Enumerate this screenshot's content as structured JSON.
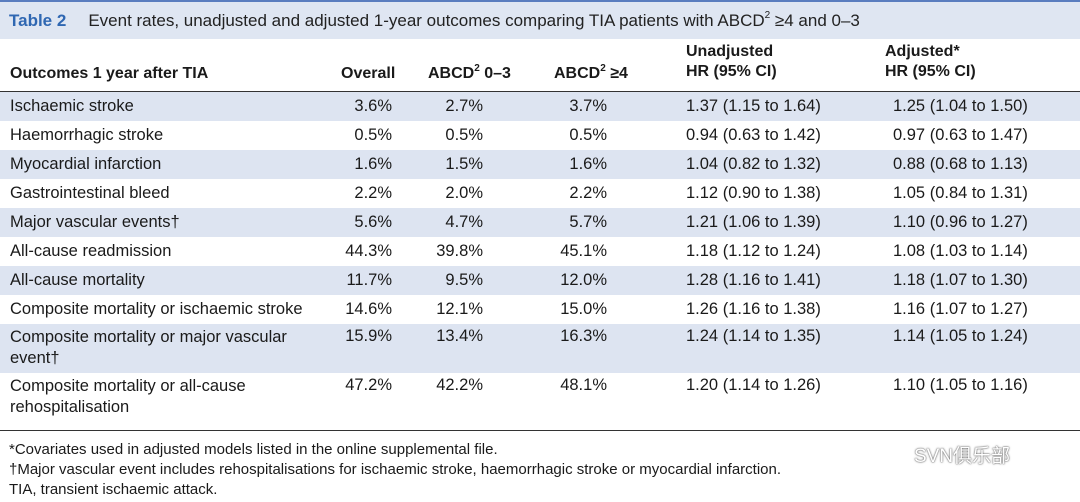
{
  "title": {
    "label": "Table 2",
    "text_before": "Event rates, unadjusted and adjusted 1-year outcomes comparing TIA patients with ABCD",
    "sup": "2",
    "text_after": " ≥4 and 0–3"
  },
  "header": {
    "outcomes": "Outcomes 1 year after TIA",
    "overall": "Overall",
    "abcd_low_prefix": "ABCD",
    "abcd_low_sup": "2",
    "abcd_low_suffix": " 0–3",
    "abcd_high_prefix": "ABCD",
    "abcd_high_sup": "2",
    "abcd_high_suffix": " ≥4",
    "unadjusted_line1": "Unadjusted",
    "unadjusted_line2": "HR (95% CI)",
    "adjusted_line1": "Adjusted*",
    "adjusted_line2": "HR (95% CI)"
  },
  "rows": [
    {
      "outcome": "Ischaemic stroke",
      "overall": "3.6%",
      "low": "2.7%",
      "high": "3.7%",
      "unadj": "1.37 (1.15 to 1.64)",
      "adj": "1.25 (1.04 to 1.50)"
    },
    {
      "outcome": "Haemorrhagic stroke",
      "overall": "0.5%",
      "low": "0.5%",
      "high": "0.5%",
      "unadj": "0.94 (0.63 to 1.42)",
      "adj": "0.97 (0.63 to 1.47)"
    },
    {
      "outcome": "Myocardial infarction",
      "overall": "1.6%",
      "low": "1.5%",
      "high": "1.6%",
      "unadj": "1.04 (0.82 to 1.32)",
      "adj": "0.88 (0.68 to 1.13)"
    },
    {
      "outcome": "Gastrointestinal bleed",
      "overall": "2.2%",
      "low": "2.0%",
      "high": "2.2%",
      "unadj": "1.12 (0.90 to 1.38)",
      "adj": "1.05 (0.84 to 1.31)"
    },
    {
      "outcome": "Major vascular events†",
      "overall": "5.6%",
      "low": "4.7%",
      "high": "5.7%",
      "unadj": "1.21 (1.06 to 1.39)",
      "adj": "1.10 (0.96 to 1.27)"
    },
    {
      "outcome": "All-cause readmission",
      "overall": "44.3%",
      "low": "39.8%",
      "high": "45.1%",
      "unadj": "1.18 (1.12 to 1.24)",
      "adj": "1.08 (1.03 to 1.14)"
    },
    {
      "outcome": "All-cause mortality",
      "overall": "11.7%",
      "low": "9.5%",
      "high": "12.0%",
      "unadj": "1.28 (1.16 to 1.41)",
      "adj": "1.18 (1.07 to 1.30)"
    },
    {
      "outcome": "Composite mortality or ischaemic stroke",
      "overall": "14.6%",
      "low": "12.1%",
      "high": "15.0%",
      "unadj": "1.26 (1.16 to 1.38)",
      "adj": "1.16 (1.07 to 1.27)"
    },
    {
      "outcome": "Composite mortality or major vascular event†",
      "overall": "15.9%",
      "low": "13.4%",
      "high": "16.3%",
      "unadj": "1.24 (1.14 to 1.35)",
      "adj": "1.14 (1.05 to 1.24)"
    },
    {
      "outcome": "Composite mortality or all-cause rehospitalisation",
      "overall": "47.2%",
      "low": "42.2%",
      "high": "48.1%",
      "unadj": "1.20 (1.14 to 1.26)",
      "adj": "1.10 (1.05 to 1.16)"
    }
  ],
  "footnotes": [
    "*Covariates used in adjusted models listed in the online supplemental file.",
    "†Major vascular event includes rehospitalisations for ischaemic stroke, haemorrhagic stroke or myocardial infarction.",
    "TIA, transient ischaemic attack."
  ],
  "watermark": {
    "text": "SVN俱乐部",
    "icon": "wechat-icon"
  },
  "colors": {
    "title_bar": "#dfe6f2",
    "title_label": "#2f67b2",
    "row_shade": "#dde4f1"
  }
}
